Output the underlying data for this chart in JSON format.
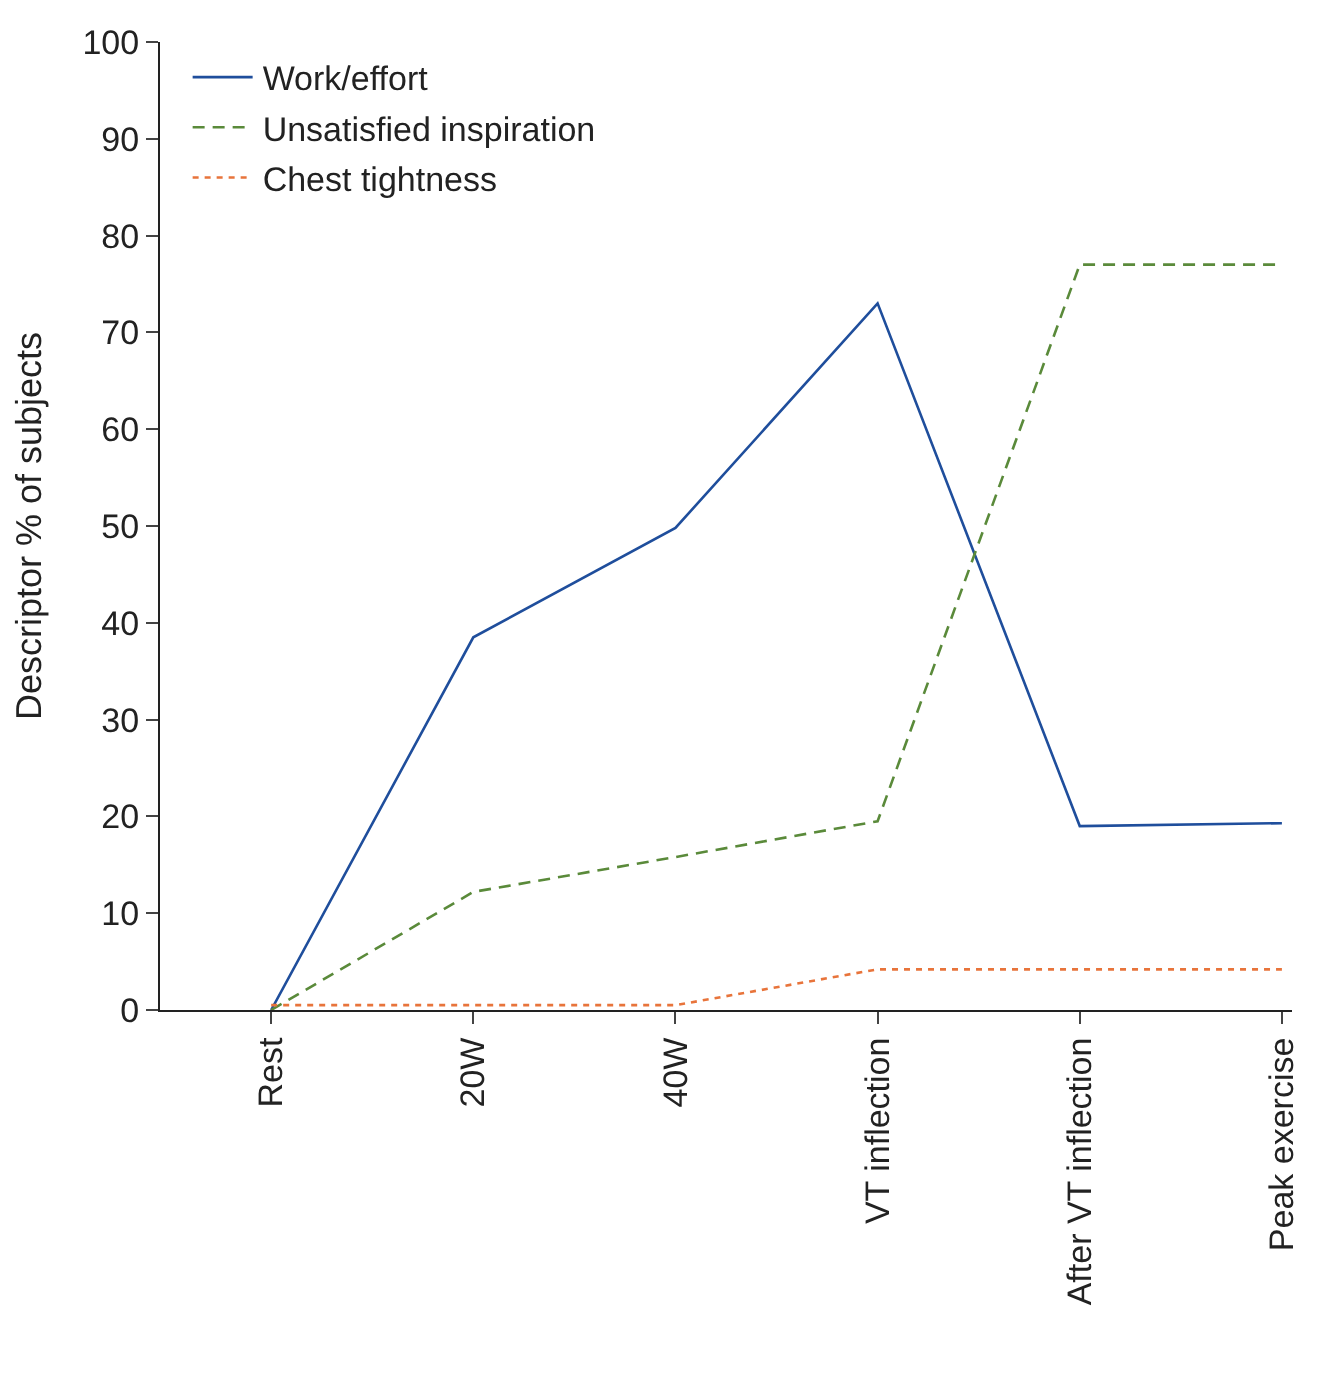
{
  "chart_data": {
    "type": "line",
    "ylabel": "Descriptor % of subjects",
    "categories": [
      "Rest",
      "20W",
      "40W",
      "VT inflection",
      "After VT inflection",
      "Peak exercise"
    ],
    "series": [
      {
        "name": "Work/effort",
        "color": "#1f4e9c",
        "line_style": "solid",
        "values": [
          0,
          38.5,
          49.8,
          73,
          19,
          19.3
        ]
      },
      {
        "name": "Unsatisfied inspiration",
        "color": "#5a8a3a",
        "line_style": "dashed",
        "values": [
          0,
          12.2,
          15.8,
          19.5,
          77,
          77
        ]
      },
      {
        "name": "Chest tightness",
        "color": "#e8743b",
        "line_style": "dotted",
        "values": [
          0.5,
          0.5,
          0.5,
          4.2,
          4.2,
          4.2
        ]
      }
    ],
    "ylim": [
      0,
      100
    ],
    "yticks": [
      0,
      10,
      20,
      30,
      40,
      50,
      60,
      70,
      80,
      90,
      100
    ],
    "legend": "top left",
    "marker": "none"
  }
}
